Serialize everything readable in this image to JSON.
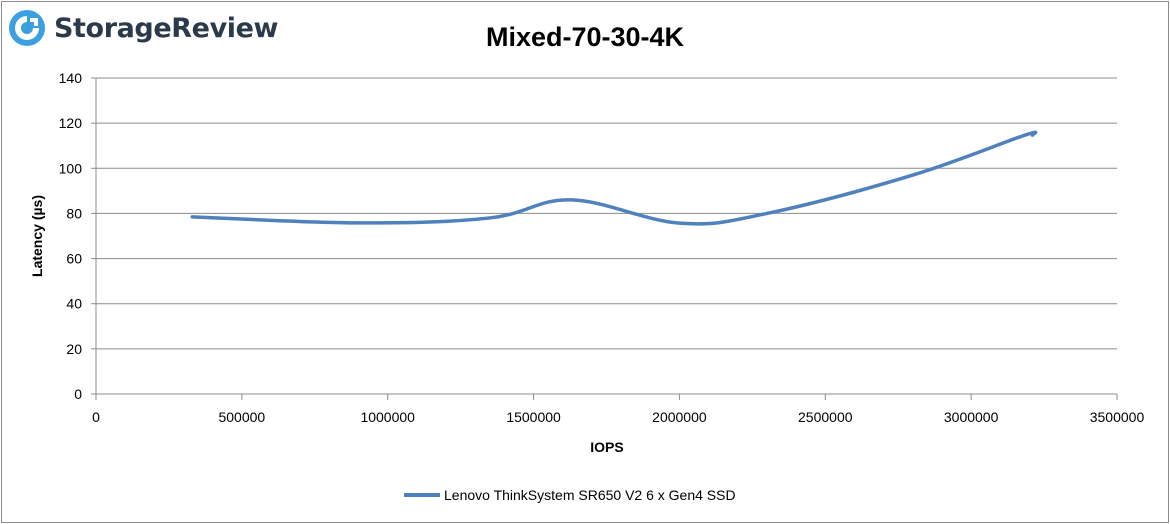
{
  "brand": {
    "name": "StorageReview",
    "accent": "#3aa0e0"
  },
  "chart_data": {
    "type": "line",
    "title": "Mixed-70-30-4K",
    "xlabel": "IOPS",
    "ylabel": "Latency (µs)",
    "xlim": [
      0,
      3500000
    ],
    "ylim": [
      0,
      140
    ],
    "x_ticks": [
      "0",
      "500000",
      "1000000",
      "1500000",
      "2000000",
      "2500000",
      "3000000",
      "3500000"
    ],
    "y_ticks": [
      "0",
      "20",
      "40",
      "60",
      "80",
      "100",
      "120",
      "140"
    ],
    "grid": "horizontal",
    "legend_position": "bottom",
    "series": [
      {
        "name": "Lenovo ThinkSystem SR650 V2 6 x Gen4 SSD",
        "color": "#4f81bd",
        "points": [
          {
            "x": 330000,
            "y": 78.5
          },
          {
            "x": 900000,
            "y": 75.8
          },
          {
            "x": 1350000,
            "y": 78.0
          },
          {
            "x": 1630000,
            "y": 86.0
          },
          {
            "x": 2000000,
            "y": 75.7
          },
          {
            "x": 2300000,
            "y": 80.0
          },
          {
            "x": 2800000,
            "y": 97.0
          },
          {
            "x": 3180000,
            "y": 114.5
          },
          {
            "x": 3210000,
            "y": 114.7
          }
        ]
      }
    ]
  }
}
